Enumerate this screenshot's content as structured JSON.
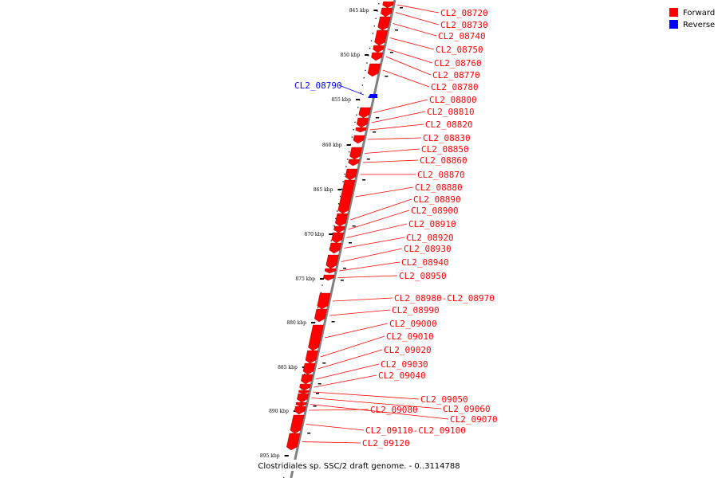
{
  "colors": {
    "forward": "#ff0000",
    "reverse": "#0000ff",
    "backbone": "#808080"
  },
  "legend": [
    {
      "key": "forward",
      "label": "Forward",
      "color": "#ff0000"
    },
    {
      "key": "reverse",
      "label": "Reverse",
      "color": "#0000ff"
    }
  ],
  "caption": "Clostridiales sp. SSC/2 draft genome. - 0..3114788",
  "ticks": [
    "845 kbp",
    "850 kbp",
    "855 kbp",
    "860 kbp",
    "865 kbp",
    "870 kbp",
    "875 kbp",
    "880 kbp",
    "885 kbp",
    "890 kbp",
    "895 kbp"
  ],
  "genes": [
    {
      "label": "CL2_08720",
      "strand": "forward"
    },
    {
      "label": "CL2_08730",
      "strand": "forward"
    },
    {
      "label": "CL2_08740",
      "strand": "forward"
    },
    {
      "label": "CL2_08750",
      "strand": "forward"
    },
    {
      "label": "CL2_08760",
      "strand": "forward"
    },
    {
      "label": "CL2_08770",
      "strand": "forward"
    },
    {
      "label": "CL2_08780",
      "strand": "forward"
    },
    {
      "label": "CL2_08790",
      "strand": "reverse"
    },
    {
      "label": "CL2_08800",
      "strand": "forward"
    },
    {
      "label": "CL2_08810",
      "strand": "forward"
    },
    {
      "label": "CL2_08820",
      "strand": "forward"
    },
    {
      "label": "CL2_08830",
      "strand": "forward"
    },
    {
      "label": "CL2_08850",
      "strand": "forward"
    },
    {
      "label": "CL2_08860",
      "strand": "forward"
    },
    {
      "label": "CL2_08870",
      "strand": "forward"
    },
    {
      "label": "CL2_08880",
      "strand": "forward"
    },
    {
      "label": "CL2_08890",
      "strand": "forward"
    },
    {
      "label": "CL2_08900",
      "strand": "forward"
    },
    {
      "label": "CL2_08910",
      "strand": "forward"
    },
    {
      "label": "CL2_08920",
      "strand": "forward"
    },
    {
      "label": "CL2_08930",
      "strand": "forward"
    },
    {
      "label": "CL2_08940",
      "strand": "forward"
    },
    {
      "label": "CL2_08950",
      "strand": "forward"
    },
    {
      "label": "CL2_08980-CL2_08970",
      "strand": "forward"
    },
    {
      "label": "CL2_08990",
      "strand": "forward"
    },
    {
      "label": "CL2_09000",
      "strand": "forward"
    },
    {
      "label": "CL2_09010",
      "strand": "forward"
    },
    {
      "label": "CL2_09020",
      "strand": "forward"
    },
    {
      "label": "CL2_09030",
      "strand": "forward"
    },
    {
      "label": "CL2_09040",
      "strand": "forward"
    },
    {
      "label": "CL2_09050",
      "strand": "forward"
    },
    {
      "label": "CL2_09060",
      "strand": "forward"
    },
    {
      "label": "CL2_09070",
      "strand": "forward"
    },
    {
      "label": "CL2_09080",
      "strand": "forward"
    },
    {
      "label": "CL2_09110-CL2_09100",
      "strand": "forward"
    },
    {
      "label": "CL2_09120",
      "strand": "forward"
    }
  ]
}
